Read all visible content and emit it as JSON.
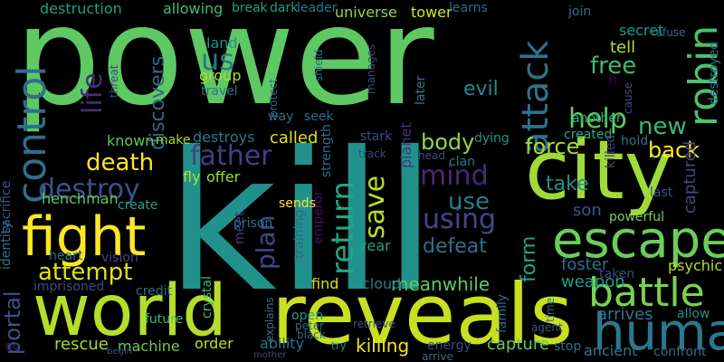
{
  "words": [
    {
      "text": "power",
      "color": "#5ec962"
    },
    {
      "text": "kill",
      "color": "#21918c"
    },
    {
      "text": "city",
      "color": "#a0da39"
    },
    {
      "text": "world",
      "color": "#b5de2b"
    },
    {
      "text": "reveals",
      "color": "#c8e020"
    },
    {
      "text": "human",
      "color": "#2a788e"
    },
    {
      "text": "fight",
      "color": "#fde725"
    },
    {
      "text": "escape",
      "color": "#6ccd5a"
    },
    {
      "text": "battle",
      "color": "#7ad151"
    },
    {
      "text": "control",
      "color": "#2e6e8e"
    },
    {
      "text": "robin",
      "color": "#4ac16d"
    },
    {
      "text": "attack",
      "color": "#2c728e"
    },
    {
      "text": "destroy",
      "color": "#3b528b"
    },
    {
      "text": "attempt",
      "color": "#dde318"
    },
    {
      "text": "return",
      "color": "#22a785"
    },
    {
      "text": "death",
      "color": "#fde725"
    },
    {
      "text": "father",
      "color": "#433e85"
    },
    {
      "text": "mind",
      "color": "#482878"
    },
    {
      "text": "using",
      "color": "#3e4989"
    },
    {
      "text": "save",
      "color": "#b5de2b"
    },
    {
      "text": "use",
      "color": "#287c8e"
    },
    {
      "text": "help",
      "color": "#5ec962"
    },
    {
      "text": "free",
      "color": "#3dbc74"
    },
    {
      "text": "new",
      "color": "#38b977"
    },
    {
      "text": "life",
      "color": "#472d7b"
    },
    {
      "text": "discovers",
      "color": "#31688e"
    },
    {
      "text": "us",
      "color": "#2a788e"
    },
    {
      "text": "evil",
      "color": "#23898e"
    },
    {
      "text": "force",
      "color": "#a5db36"
    },
    {
      "text": "back",
      "color": "#fde725"
    },
    {
      "text": "body",
      "color": "#90d743"
    },
    {
      "text": "defeat",
      "color": "#2d708e"
    },
    {
      "text": "plan",
      "color": "#404688"
    },
    {
      "text": "portal",
      "color": "#3b528b"
    },
    {
      "text": "rescue",
      "color": "#a2da37"
    },
    {
      "text": "machine",
      "color": "#6ece58"
    },
    {
      "text": "killing",
      "color": "#f1e51d"
    },
    {
      "text": "capture",
      "color": "#5ec962"
    },
    {
      "text": "meanwhile",
      "color": "#5ec962"
    },
    {
      "text": "form",
      "color": "#21a685"
    },
    {
      "text": "foster",
      "color": "#2d708e"
    },
    {
      "text": "weapon",
      "color": "#1f9e89"
    },
    {
      "text": "arrives",
      "color": "#2a788e"
    },
    {
      "text": "take",
      "color": "#21918c"
    },
    {
      "text": "son",
      "color": "#3b528b"
    },
    {
      "text": "powerful",
      "color": "#7ad151"
    },
    {
      "text": "tell",
      "color": "#b5de2b"
    },
    {
      "text": "created",
      "color": "#27ad81"
    },
    {
      "text": "destruction",
      "color": "#1f9e89"
    },
    {
      "text": "allowing",
      "color": "#3dbc74"
    },
    {
      "text": "break",
      "color": "#1f9e89"
    },
    {
      "text": "dark",
      "color": "#1f9e89"
    },
    {
      "text": "leader",
      "color": "#2a788e"
    },
    {
      "text": "universe",
      "color": "#8fd744"
    },
    {
      "text": "tower",
      "color": "#dde318"
    },
    {
      "text": "learns",
      "color": "#31688e"
    },
    {
      "text": "secret",
      "color": "#1f9e89"
    },
    {
      "text": "join",
      "color": "#2c728e"
    },
    {
      "text": "refuse",
      "color": "#31688e"
    },
    {
      "text": "destroyed",
      "color": "#2e6e8e"
    },
    {
      "text": "captured",
      "color": "#3e4989"
    },
    {
      "text": "cause",
      "color": "#3b528b"
    },
    {
      "text": "another",
      "color": "#29af7f"
    },
    {
      "text": "killed",
      "color": "#433e85"
    },
    {
      "text": "hold",
      "color": "#2c728e"
    },
    {
      "text": "last",
      "color": "#3b528b"
    },
    {
      "text": "dying",
      "color": "#21918c"
    },
    {
      "text": "clan",
      "color": "#2a788e"
    },
    {
      "text": "planet",
      "color": "#46327e"
    },
    {
      "text": "later",
      "color": "#2a788e"
    },
    {
      "text": "seek",
      "color": "#31688e"
    },
    {
      "text": "stark",
      "color": "#3e4989"
    },
    {
      "text": "strength",
      "color": "#2e6e8e"
    },
    {
      "text": "emperor",
      "color": "#471365"
    },
    {
      "text": "called",
      "color": "#dde318"
    },
    {
      "text": "known",
      "color": "#5ec962"
    },
    {
      "text": "make",
      "color": "#a0da39"
    },
    {
      "text": "destroys",
      "color": "#2a788e"
    },
    {
      "text": "group",
      "color": "#addc30"
    },
    {
      "text": "land",
      "color": "#21918c"
    },
    {
      "text": "travel",
      "color": "#2a788e"
    },
    {
      "text": "fly",
      "color": "#b5de2b"
    },
    {
      "text": "offer",
      "color": "#a0da39"
    },
    {
      "text": "sends",
      "color": "#fde725"
    },
    {
      "text": "training",
      "color": "#34618d"
    },
    {
      "text": "prison",
      "color": "#2c728e"
    },
    {
      "text": "meet",
      "color": "#433e85"
    },
    {
      "text": "year",
      "color": "#20a386"
    },
    {
      "text": "find",
      "color": "#dde318"
    },
    {
      "text": "cloud",
      "color": "#2a788e"
    },
    {
      "text": "heart",
      "color": "#2e6e8e"
    },
    {
      "text": "vision",
      "color": "#3e4989"
    },
    {
      "text": "imprisoned",
      "color": "#3e4989"
    },
    {
      "text": "crystal",
      "color": "#3dbc74"
    },
    {
      "text": "create",
      "color": "#20a386"
    },
    {
      "text": "henchman",
      "color": "#5ec962"
    },
    {
      "text": "sacrifice",
      "color": "#3b528b"
    },
    {
      "text": "identity",
      "color": "#2c728e"
    },
    {
      "text": "future",
      "color": "#3dbc74"
    },
    {
      "text": "ability",
      "color": "#2c728e"
    },
    {
      "text": "order",
      "color": "#b5de2b"
    },
    {
      "text": "energy",
      "color": "#3e4989"
    },
    {
      "text": "open",
      "color": "#1f9e89"
    },
    {
      "text": "explains",
      "color": "#2e6e8e"
    },
    {
      "text": "credit",
      "color": "#2e6e8e"
    },
    {
      "text": "psychic",
      "color": "#b5de2b"
    },
    {
      "text": "allow",
      "color": "#21918c"
    },
    {
      "text": "taken",
      "color": "#3e4989"
    },
    {
      "text": "ancient",
      "color": "#2a788e"
    },
    {
      "text": "confront",
      "color": "#2e6e8e"
    },
    {
      "text": "stop",
      "color": "#2c728e"
    },
    {
      "text": "family",
      "color": "#31688e"
    },
    {
      "text": "shield",
      "color": "#2c728e"
    },
    {
      "text": "manages",
      "color": "#3e4989"
    },
    {
      "text": "protect",
      "color": "#31688e"
    },
    {
      "text": "way",
      "color": "#2e6e8e"
    },
    {
      "text": "threat",
      "color": "#3e4989"
    },
    {
      "text": "h",
      "color": "#440154"
    },
    {
      "text": "go",
      "color": "#481f70"
    },
    {
      "text": "peter",
      "color": "#2e6e8e"
    },
    {
      "text": "black",
      "color": "#31688e"
    },
    {
      "text": "retrieve",
      "color": "#3e4989"
    },
    {
      "text": "try",
      "color": "#21918c"
    },
    {
      "text": "arrive",
      "color": "#31688e"
    },
    {
      "text": "time",
      "color": "#2c728e"
    },
    {
      "text": "agent",
      "color": "#3b528b"
    },
    {
      "text": "head",
      "color": "#3e4989"
    },
    {
      "text": "track",
      "color": "#3e4989"
    },
    {
      "text": "begin",
      "color": "#3e4989"
    },
    {
      "text": "mother",
      "color": "#3e4989"
    }
  ]
}
